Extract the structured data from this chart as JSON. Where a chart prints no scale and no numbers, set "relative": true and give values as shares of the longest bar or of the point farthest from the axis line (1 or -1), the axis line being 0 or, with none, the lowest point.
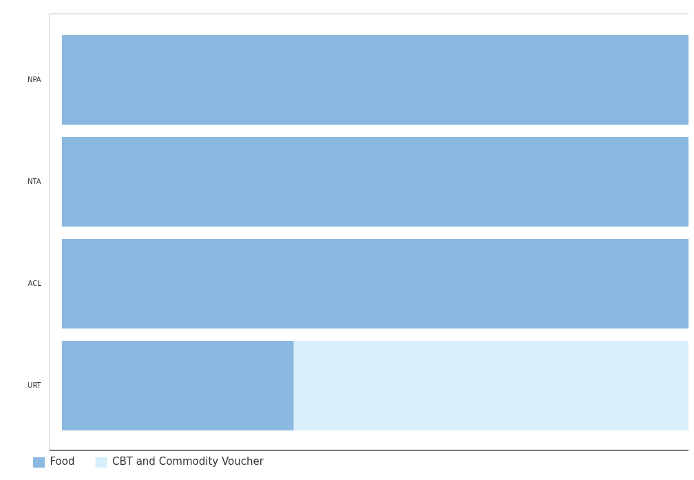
{
  "chart_data": {
    "type": "bar",
    "orientation": "horizontal",
    "stacked": true,
    "relative": true,
    "categories": [
      "NPA",
      "NTA",
      "ACL",
      "URT"
    ],
    "legend": "bottom left",
    "series": [
      {
        "name": "Food",
        "color": "#8ab8e1",
        "values": [
          1,
          1,
          1,
          0.37
        ]
      },
      {
        "name": "CBT and Commodity Voucher",
        "color": "#d6effb",
        "values": [
          0,
          0,
          0,
          0.63
        ]
      }
    ]
  }
}
